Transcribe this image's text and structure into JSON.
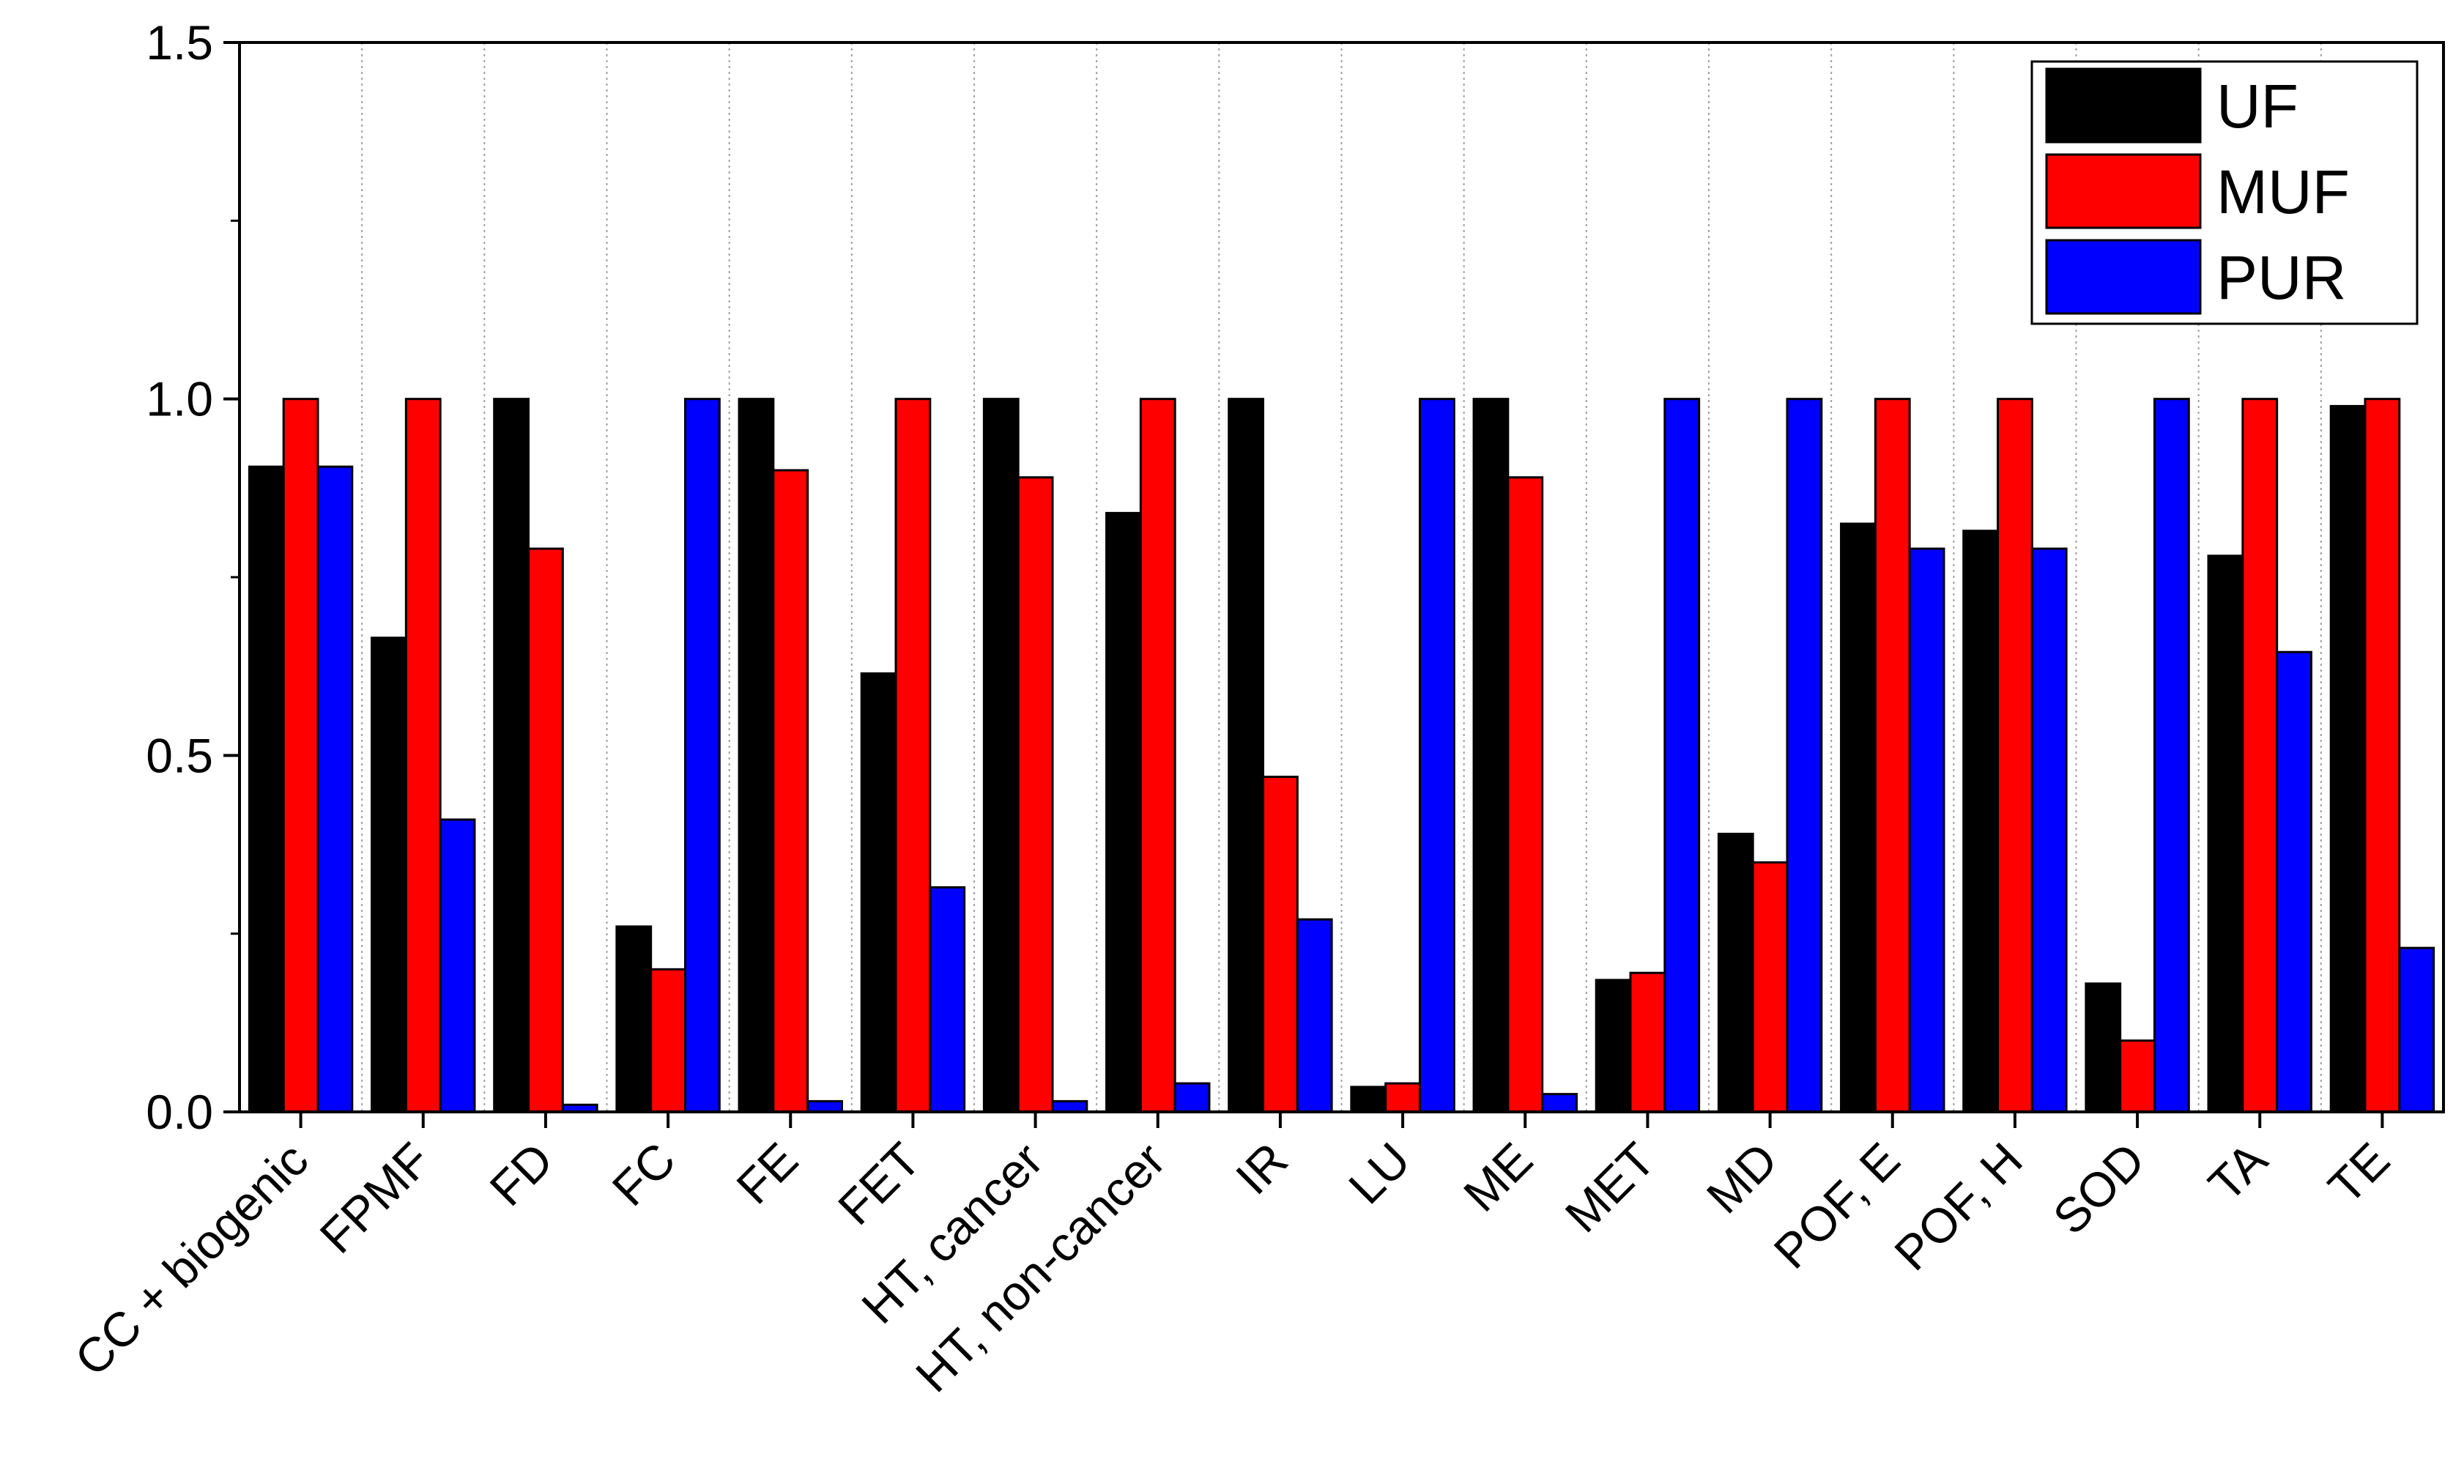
{
  "chart_data": {
    "type": "bar",
    "title": "",
    "xlabel": "",
    "ylabel": "",
    "ylim": [
      0,
      1.5
    ],
    "yticks": [
      "0.0",
      "0.5",
      "1.0",
      "1.5"
    ],
    "grid": "vertical dotted separators between categories",
    "legend_position": "top-right",
    "categories": [
      "CC + biogenic",
      "FPMF",
      "FD",
      "FC",
      "FE",
      "FET",
      "HT, cancer",
      "HT, non-cancer",
      "IR",
      "LU",
      "ME",
      "MET",
      "MD",
      "POF, E",
      "POF, H",
      "SOD",
      "TA",
      "TE"
    ],
    "series": [
      {
        "name": "UF",
        "color": "#000000",
        "values": [
          0.905,
          0.665,
          1.0,
          0.26,
          1.0,
          0.615,
          1.0,
          0.84,
          1.0,
          0.035,
          1.0,
          0.185,
          0.39,
          0.825,
          0.815,
          0.18,
          0.78,
          0.99
        ]
      },
      {
        "name": "MUF",
        "color": "#ff0000",
        "values": [
          1.0,
          1.0,
          0.79,
          0.2,
          0.9,
          1.0,
          0.89,
          1.0,
          0.47,
          0.04,
          0.89,
          0.195,
          0.35,
          1.0,
          1.0,
          0.1,
          1.0,
          1.0
        ]
      },
      {
        "name": "PUR",
        "color": "#0000ff",
        "values": [
          0.905,
          0.41,
          0.01,
          1.0,
          0.015,
          0.315,
          0.015,
          0.04,
          0.27,
          1.0,
          0.025,
          1.0,
          1.0,
          0.79,
          0.79,
          1.0,
          0.645,
          0.23
        ]
      }
    ]
  }
}
